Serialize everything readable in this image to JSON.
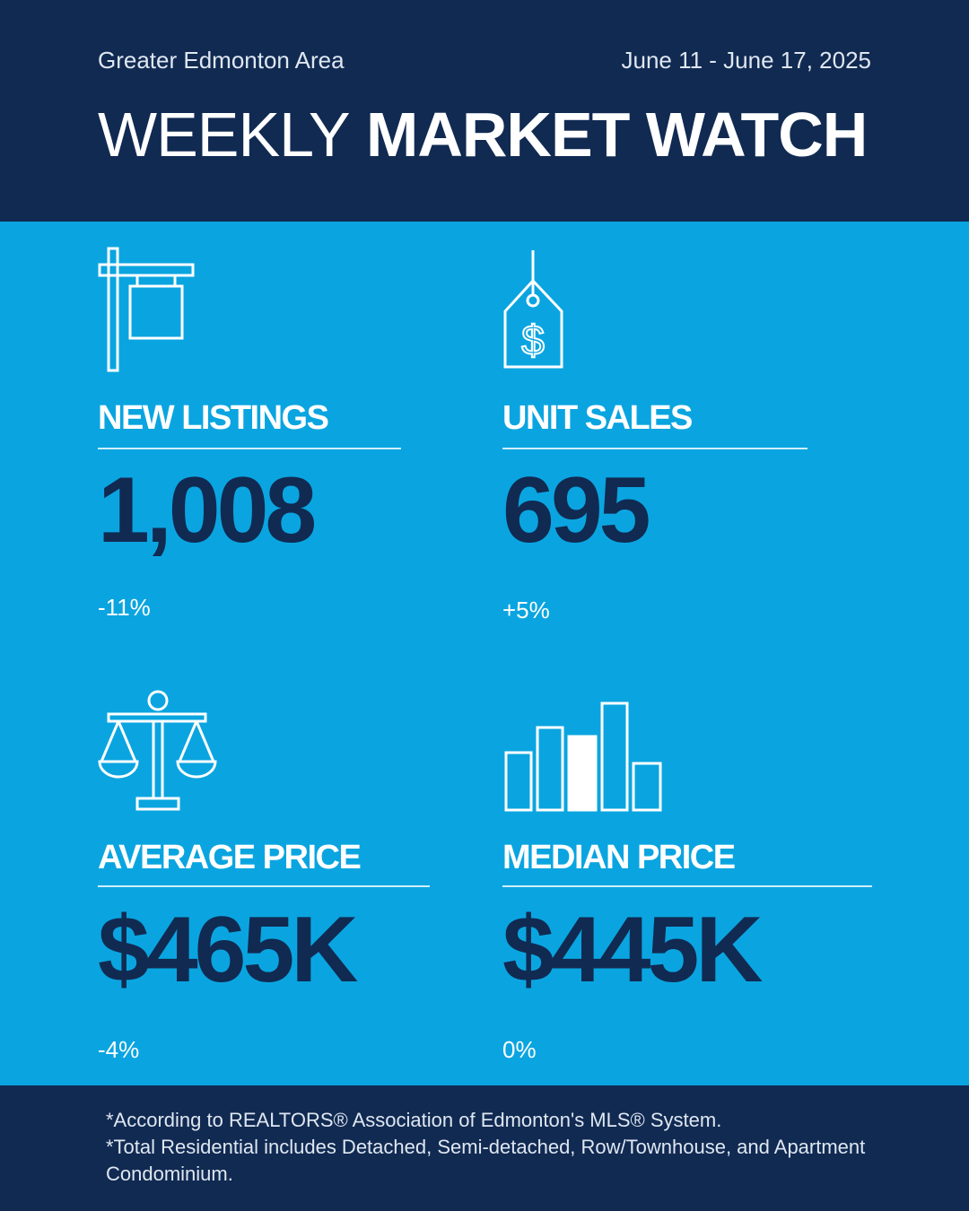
{
  "header": {
    "region": "Greater Edmonton Area",
    "date_range": "June 11 - June 17, 2025",
    "title_light": "WEEKLY",
    "title_bold": "MARKET WATCH"
  },
  "metrics": [
    {
      "label": "NEW LISTINGS",
      "value": "1,008",
      "change": "-11%",
      "icon": "for-sale-sign-icon"
    },
    {
      "label": "UNIT SALES",
      "value": "695",
      "change": "+5%",
      "icon": "price-tag-icon"
    },
    {
      "label": "AVERAGE PRICE",
      "value": "$465K",
      "change": "-4%",
      "icon": "scales-icon"
    },
    {
      "label": "MEDIAN PRICE",
      "value": "$445K",
      "change": "0%",
      "icon": "bar-chart-icon"
    }
  ],
  "footer": {
    "line1": "*According to REALTORS® Association of Edmonton's MLS® System.",
    "line2": "*Total Residential includes Detached, Semi-detached, Row/Townhouse, and Apartment Condominium."
  },
  "colors": {
    "navy": "#112a52",
    "accent_blue": "#0aa5e0",
    "white": "#ffffff"
  }
}
